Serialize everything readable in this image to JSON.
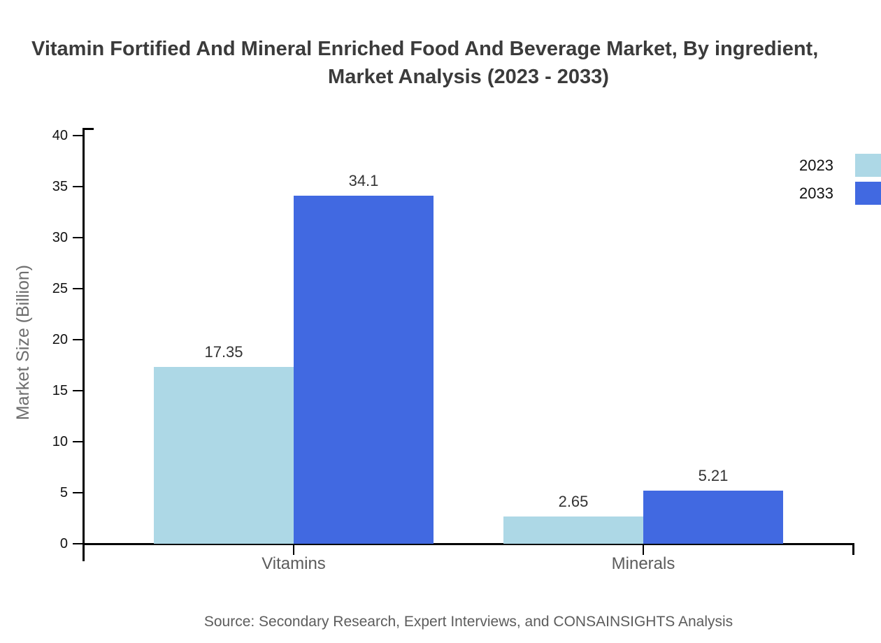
{
  "title": {
    "line1": "Vitamin Fortified And Mineral Enriched Food And Beverage Market, By ingredient,",
    "line2": "Market Analysis (2023 - 2033)"
  },
  "source_note": "Source: Secondary Research, Expert Interviews, and CONSAINSIGHTS Analysis",
  "colors": {
    "series_2023": "#ADD8E6",
    "series_2033": "#4169E1",
    "axis": "#000000",
    "title_text": "#3B3B3B",
    "tick_label_text": "#111111",
    "data_label_text": "#333333",
    "muted_text": "#5C5C5C"
  },
  "chart_data": {
    "type": "bar",
    "title": "Vitamin Fortified And Mineral Enriched Food And Beverage Market, By ingredient, Market Analysis (2023 - 2033)",
    "categories": [
      "Vitamins",
      "Minerals"
    ],
    "series": [
      {
        "name": "2023",
        "color": "#ADD8E6",
        "values": [
          17.35,
          2.65
        ]
      },
      {
        "name": "2033",
        "color": "#4169E1",
        "values": [
          34.1,
          5.21
        ]
      }
    ],
    "data_labels": [
      [
        "17.35",
        "2.65"
      ],
      [
        "34.1",
        "5.21"
      ]
    ],
    "xlabel": "",
    "ylabel": "Market Size (Billion)",
    "ylim": [
      0,
      40
    ],
    "yticks": [
      0,
      5,
      10,
      15,
      20,
      25,
      30,
      35,
      40
    ],
    "grid": false,
    "legend_position": "top-right"
  }
}
